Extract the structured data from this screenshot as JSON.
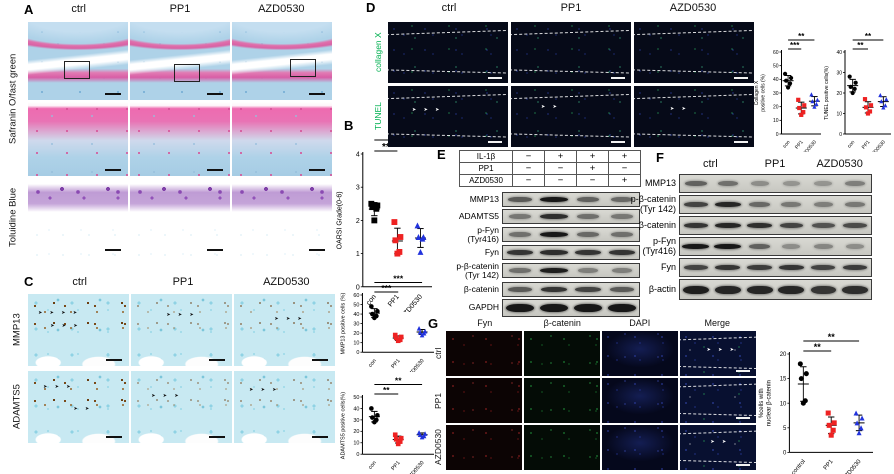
{
  "panels": {
    "a": {
      "label": "A",
      "col_headers": [
        "ctrl",
        "PP1",
        "AZD0530"
      ],
      "row_labels": [
        "Safranin O/fast green",
        "Toluidine Blue"
      ]
    },
    "b": {
      "label": "B"
    },
    "c": {
      "label": "C",
      "col_headers": [
        "ctrl",
        "PP1",
        "AZD0530"
      ],
      "row_labels": [
        "MMP13",
        "ADAMTS5"
      ]
    },
    "d": {
      "label": "D",
      "col_headers": [
        "ctrl",
        "PP1",
        "AZD0530"
      ],
      "row_labels": [
        "collagen X",
        "TUNEL"
      ],
      "row_label_color": "#00b050"
    },
    "e": {
      "label": "E",
      "condition_rows": [
        {
          "name": "IL-1β",
          "values": [
            "−",
            "+",
            "+",
            "+"
          ]
        },
        {
          "name": "PP1",
          "values": [
            "−",
            "−",
            "+",
            "−"
          ]
        },
        {
          "name": "AZD0530",
          "values": [
            "−",
            "−",
            "−",
            "+"
          ]
        }
      ],
      "blot": {
        "lanes": 4,
        "rows": [
          {
            "label": "MMP13",
            "bands": [
              0.55,
              1,
              0.5,
              0.45
            ]
          },
          {
            "label": "ADAMTS5",
            "bands": [
              0.35,
              0.85,
              0.4,
              0.35
            ]
          },
          {
            "label": "p-Fyn\n(Tyr416)",
            "bands": [
              0.4,
              1,
              0.45,
              0.4
            ]
          },
          {
            "label": "Fyn",
            "bands": [
              0.8,
              0.85,
              0.8,
              0.8
            ]
          },
          {
            "label": "p-β-catenin\n(Tyr 142)",
            "bands": [
              0.4,
              0.95,
              0.3,
              0.3
            ]
          },
          {
            "label": "β-catenin",
            "bands": [
              0.55,
              0.8,
              0.7,
              0.55
            ]
          },
          {
            "label": "GAPDH",
            "bands": [
              1,
              1,
              1,
              1
            ],
            "thick": true
          }
        ]
      }
    },
    "f": {
      "label": "F",
      "col_headers": [
        "ctrl",
        "PP1",
        "AZD0530"
      ],
      "blot": {
        "lanes": 6,
        "rows": [
          {
            "label": "MMP13",
            "bands": [
              0.5,
              0.4,
              0.2,
              0.15,
              0.15,
              0.3
            ]
          },
          {
            "label": "p-β-catenin\n(Tyr 142)",
            "bands": [
              0.7,
              0.9,
              0.45,
              0.35,
              0.3,
              0.35
            ]
          },
          {
            "label": "β-catenin",
            "bands": [
              0.8,
              0.9,
              0.85,
              0.7,
              0.6,
              0.65
            ]
          },
          {
            "label": "p-Fyn\n(Tyr416)",
            "bands": [
              1,
              1,
              0.5,
              0.2,
              0.25,
              0.2
            ]
          },
          {
            "label": "Fyn",
            "bands": [
              0.7,
              0.8,
              0.75,
              0.8,
              0.7,
              0.75
            ]
          },
          {
            "label": "β-actin",
            "bands": [
              0.95,
              0.9,
              0.9,
              0.9,
              0.8,
              0.85
            ],
            "thick": true
          }
        ]
      }
    },
    "g": {
      "label": "G",
      "col_headers": [
        {
          "label": "Fyn",
          "color": "#ff2a2a"
        },
        {
          "label": "β-catenin",
          "color": "#27c840"
        },
        {
          "label": "DAPI",
          "color": "#4a5cf0"
        },
        {
          "label": "Merge",
          "color": "#e3e300"
        }
      ],
      "row_labels": [
        "ctrl",
        "PP1",
        "AZD0530"
      ]
    }
  },
  "chart_data": [
    {
      "type": "scatter",
      "title": "",
      "ylabel": "OARSI Grade(0-6)",
      "xlabel": "",
      "ylim": [
        0,
        4
      ],
      "yticks": [
        0,
        1,
        2,
        3,
        4
      ],
      "grid": false,
      "font": 7,
      "categories": [
        "con",
        "PP1",
        "AZD0530"
      ],
      "groups": [
        {
          "name": "con",
          "color": "#000000",
          "marker": "square",
          "values": [
            2.5,
            2.45,
            2.4,
            2.35,
            2.0
          ]
        },
        {
          "name": "PP1",
          "color": "#ee2222",
          "marker": "square",
          "values": [
            1.95,
            1.5,
            1.4,
            1.05,
            1.0
          ]
        },
        {
          "name": "AZD0530",
          "color": "#2233dd",
          "marker": "triangle",
          "values": [
            1.85,
            1.5,
            1.5,
            1.45,
            1.05
          ]
        }
      ],
      "significance": [
        {
          "from": 0,
          "to": 1,
          "label": "**"
        },
        {
          "from": 0,
          "to": 2,
          "label": "**"
        }
      ]
    },
    {
      "type": "scatter",
      "title": "",
      "ylabel": "MMP13 positive cells (%)",
      "xlabel": "",
      "ylim": [
        0,
        60
      ],
      "yticks": [
        0,
        10,
        20,
        30,
        40,
        50,
        60
      ],
      "grid": false,
      "font": 5.5,
      "categories": [
        "con",
        "PP1",
        "AZD0530"
      ],
      "groups": [
        {
          "name": "con",
          "color": "#000000",
          "marker": "circle",
          "values": [
            48,
            43,
            40,
            38,
            36
          ]
        },
        {
          "name": "PP1",
          "color": "#ee2222",
          "marker": "square",
          "values": [
            18,
            16,
            15,
            13,
            12
          ]
        },
        {
          "name": "AZD0530",
          "color": "#2233dd",
          "marker": "triangle",
          "values": [
            25,
            22,
            21,
            20,
            18
          ]
        }
      ],
      "significance": [
        {
          "from": 0,
          "to": 1,
          "label": "***"
        },
        {
          "from": 0,
          "to": 2,
          "label": "***"
        }
      ]
    },
    {
      "type": "scatter",
      "title": "",
      "ylabel": "ADAMTS5 positive cells(%)",
      "xlabel": "",
      "ylim": [
        0,
        50
      ],
      "yticks": [
        0,
        10,
        20,
        30,
        40,
        50
      ],
      "grid": false,
      "font": 5.5,
      "categories": [
        "con",
        "PP1",
        "AZD0530"
      ],
      "groups": [
        {
          "name": "con",
          "color": "#000000",
          "marker": "circle",
          "values": [
            40,
            34,
            32,
            30,
            28
          ]
        },
        {
          "name": "PP1",
          "color": "#ee2222",
          "marker": "square",
          "values": [
            17,
            14,
            13,
            11,
            9
          ]
        },
        {
          "name": "AZD0530",
          "color": "#2233dd",
          "marker": "triangle",
          "values": [
            19,
            18,
            17,
            16,
            15
          ]
        }
      ],
      "significance": [
        {
          "from": 0,
          "to": 1,
          "label": "**"
        },
        {
          "from": 0,
          "to": 2,
          "label": "**"
        }
      ]
    },
    {
      "type": "scatter",
      "title": "",
      "ylabel": "Collagen X\npositive cells (%)",
      "xlabel": "",
      "ylim": [
        0,
        60
      ],
      "yticks": [
        0,
        10,
        20,
        30,
        40,
        50,
        60
      ],
      "grid": false,
      "font": 5,
      "categories": [
        "con",
        "PP1",
        "AZD0530"
      ],
      "groups": [
        {
          "name": "con",
          "color": "#000000",
          "marker": "circle",
          "values": [
            44,
            41,
            39,
            37,
            34
          ]
        },
        {
          "name": "PP1",
          "color": "#ee2222",
          "marker": "square",
          "values": [
            25,
            21,
            19,
            16,
            14
          ]
        },
        {
          "name": "AZD0530",
          "color": "#2233dd",
          "marker": "triangle",
          "values": [
            29,
            25,
            24,
            22,
            20
          ]
        }
      ],
      "significance": [
        {
          "from": 0,
          "to": 1,
          "label": "***"
        },
        {
          "from": 0,
          "to": 2,
          "label": "**"
        }
      ]
    },
    {
      "type": "scatter",
      "title": "",
      "ylabel": "TUNEL positive cells(%)",
      "xlabel": "",
      "ylim": [
        0,
        40
      ],
      "yticks": [
        0,
        10,
        20,
        30,
        40
      ],
      "grid": false,
      "font": 5,
      "categories": [
        "con",
        "PP1",
        "AZD0530"
      ],
      "groups": [
        {
          "name": "con",
          "color": "#000000",
          "marker": "circle",
          "values": [
            28,
            25,
            23,
            22,
            20
          ]
        },
        {
          "name": "PP1",
          "color": "#ee2222",
          "marker": "square",
          "values": [
            17,
            14,
            13,
            11,
            10
          ]
        },
        {
          "name": "AZD0530",
          "color": "#2233dd",
          "marker": "triangle",
          "values": [
            19,
            17,
            16,
            14,
            13
          ]
        }
      ],
      "significance": [
        {
          "from": 0,
          "to": 1,
          "label": "**"
        },
        {
          "from": 0,
          "to": 2,
          "label": "**"
        }
      ]
    },
    {
      "type": "scatter",
      "title": "",
      "ylabel": "%cells with\nnuclear β-catenin",
      "xlabel": "",
      "ylim": [
        0,
        20
      ],
      "yticks": [
        0,
        5,
        10,
        15,
        20
      ],
      "grid": false,
      "font": 6,
      "categories": [
        "control",
        "PP1",
        "AZD0530"
      ],
      "groups": [
        {
          "name": "control",
          "color": "#000000",
          "marker": "circle",
          "values": [
            18,
            16,
            15,
            10.5,
            10
          ]
        },
        {
          "name": "PP1",
          "color": "#ee2222",
          "marker": "square",
          "values": [
            8,
            6,
            5.5,
            4.5,
            3.5
          ]
        },
        {
          "name": "AZD0530",
          "color": "#2233dd",
          "marker": "triangle",
          "values": [
            8,
            7,
            6,
            5,
            4
          ]
        }
      ],
      "significance": [
        {
          "from": 0,
          "to": 1,
          "label": "**"
        },
        {
          "from": 0,
          "to": 2,
          "label": "**"
        }
      ]
    }
  ]
}
